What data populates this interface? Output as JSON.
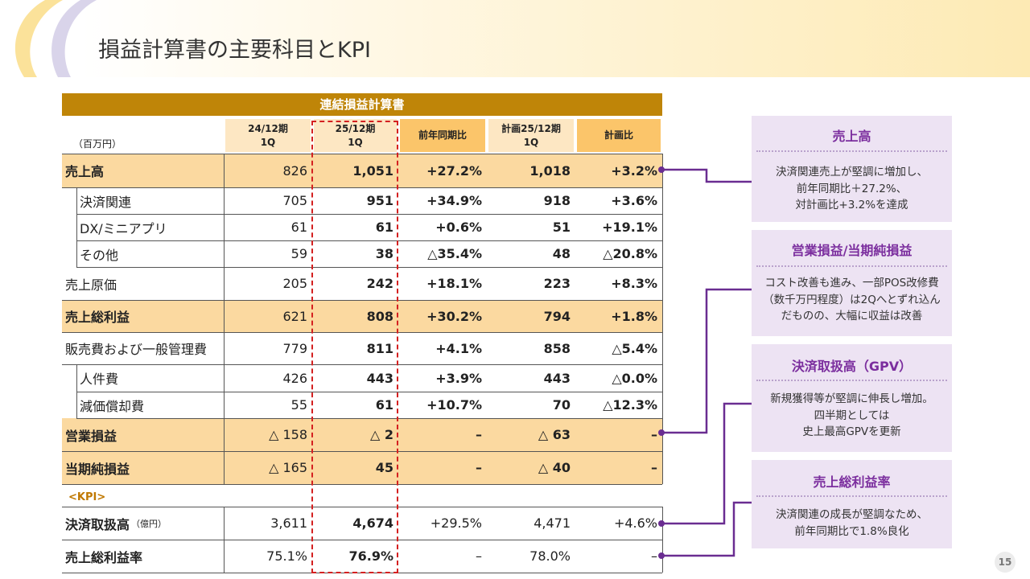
{
  "page": {
    "title": "損益計算書の主要科目とKPI",
    "page_number": "15"
  },
  "table": {
    "title": "連結損益計算書",
    "unit": "（百万円）",
    "kpi_label": "<KPI>",
    "headers": [
      "24/12期\n1Q",
      "25/12期\n1Q",
      "前年同期比",
      "計画25/12期\n1Q",
      "計画比"
    ],
    "rows": [
      {
        "label": "売上高",
        "sub": "",
        "values": [
          "826",
          "1,051",
          "+27.2%",
          "1,018",
          "+3.2%"
        ]
      },
      {
        "label": "決済関連",
        "sub": "",
        "values": [
          "705",
          "951",
          "+34.9%",
          "918",
          "+3.6%"
        ]
      },
      {
        "label": "DX/ミニアプリ",
        "sub": "",
        "values": [
          "61",
          "61",
          "+0.6%",
          "51",
          "+19.1%"
        ]
      },
      {
        "label": "その他",
        "sub": "",
        "values": [
          "59",
          "38",
          "△35.4%",
          "48",
          "△20.8%"
        ]
      },
      {
        "label": "売上原価",
        "sub": "",
        "values": [
          "205",
          "242",
          "+18.1%",
          "223",
          "+8.3%"
        ]
      },
      {
        "label": "売上総利益",
        "sub": "",
        "values": [
          "621",
          "808",
          "+30.2%",
          "794",
          "+1.8%"
        ]
      },
      {
        "label": "販売費および一般管理費",
        "sub": "",
        "values": [
          "779",
          "811",
          "+4.1%",
          "858",
          "△5.4%"
        ]
      },
      {
        "label": "人件費",
        "sub": "",
        "values": [
          "426",
          "443",
          "+3.9%",
          "443",
          "△0.0%"
        ]
      },
      {
        "label": "減価償却費",
        "sub": "",
        "values": [
          "55",
          "61",
          "+10.7%",
          "70",
          "△12.3%"
        ]
      },
      {
        "label": "営業損益",
        "sub": "",
        "values": [
          "△ 158",
          "△ 2",
          "–",
          "△ 63",
          "–"
        ]
      },
      {
        "label": "当期純損益",
        "sub": "",
        "values": [
          "△ 165",
          "45",
          "–",
          "△ 40",
          "–"
        ]
      },
      {
        "label": "決済取扱高",
        "sub": "（億円）",
        "values": [
          "3,611",
          "4,674",
          "+29.5%",
          "4,471",
          "+4.6%"
        ]
      },
      {
        "label": "売上総利益率",
        "sub": "",
        "values": [
          "75.1%",
          "76.9%",
          "–",
          "78.0%",
          "–"
        ]
      }
    ]
  },
  "panels": [
    {
      "title": "売上高",
      "lines": [
        "決済関連売上が堅調に増加し、",
        "前年同期比＋27.2%、",
        "対計画比+3.2%を達成"
      ]
    },
    {
      "title": "営業損益/当期純損益",
      "lines": [
        "コスト改善も進み、一部POS改修費",
        "（数千万円程度）は2Qへとずれ込ん",
        "だものの、大幅に収益は改善"
      ]
    },
    {
      "title": "決済取扱高（GPV）",
      "lines": [
        "新規獲得等が堅調に伸長し増加。",
        "四半期としては",
        "史上最高GPVを更新"
      ]
    },
    {
      "title": "売上総利益率",
      "lines": [
        "決済関連の成長が堅調なため、",
        "前年同期比で1.8%良化"
      ]
    }
  ],
  "colors": {
    "table_title": "#bf8508",
    "highlight": "#fbd9a0",
    "header_highlight": "#fbc56a",
    "accent": "#7b2e9e",
    "panel_bg": "#ede3f3",
    "dash": "#d42020"
  }
}
